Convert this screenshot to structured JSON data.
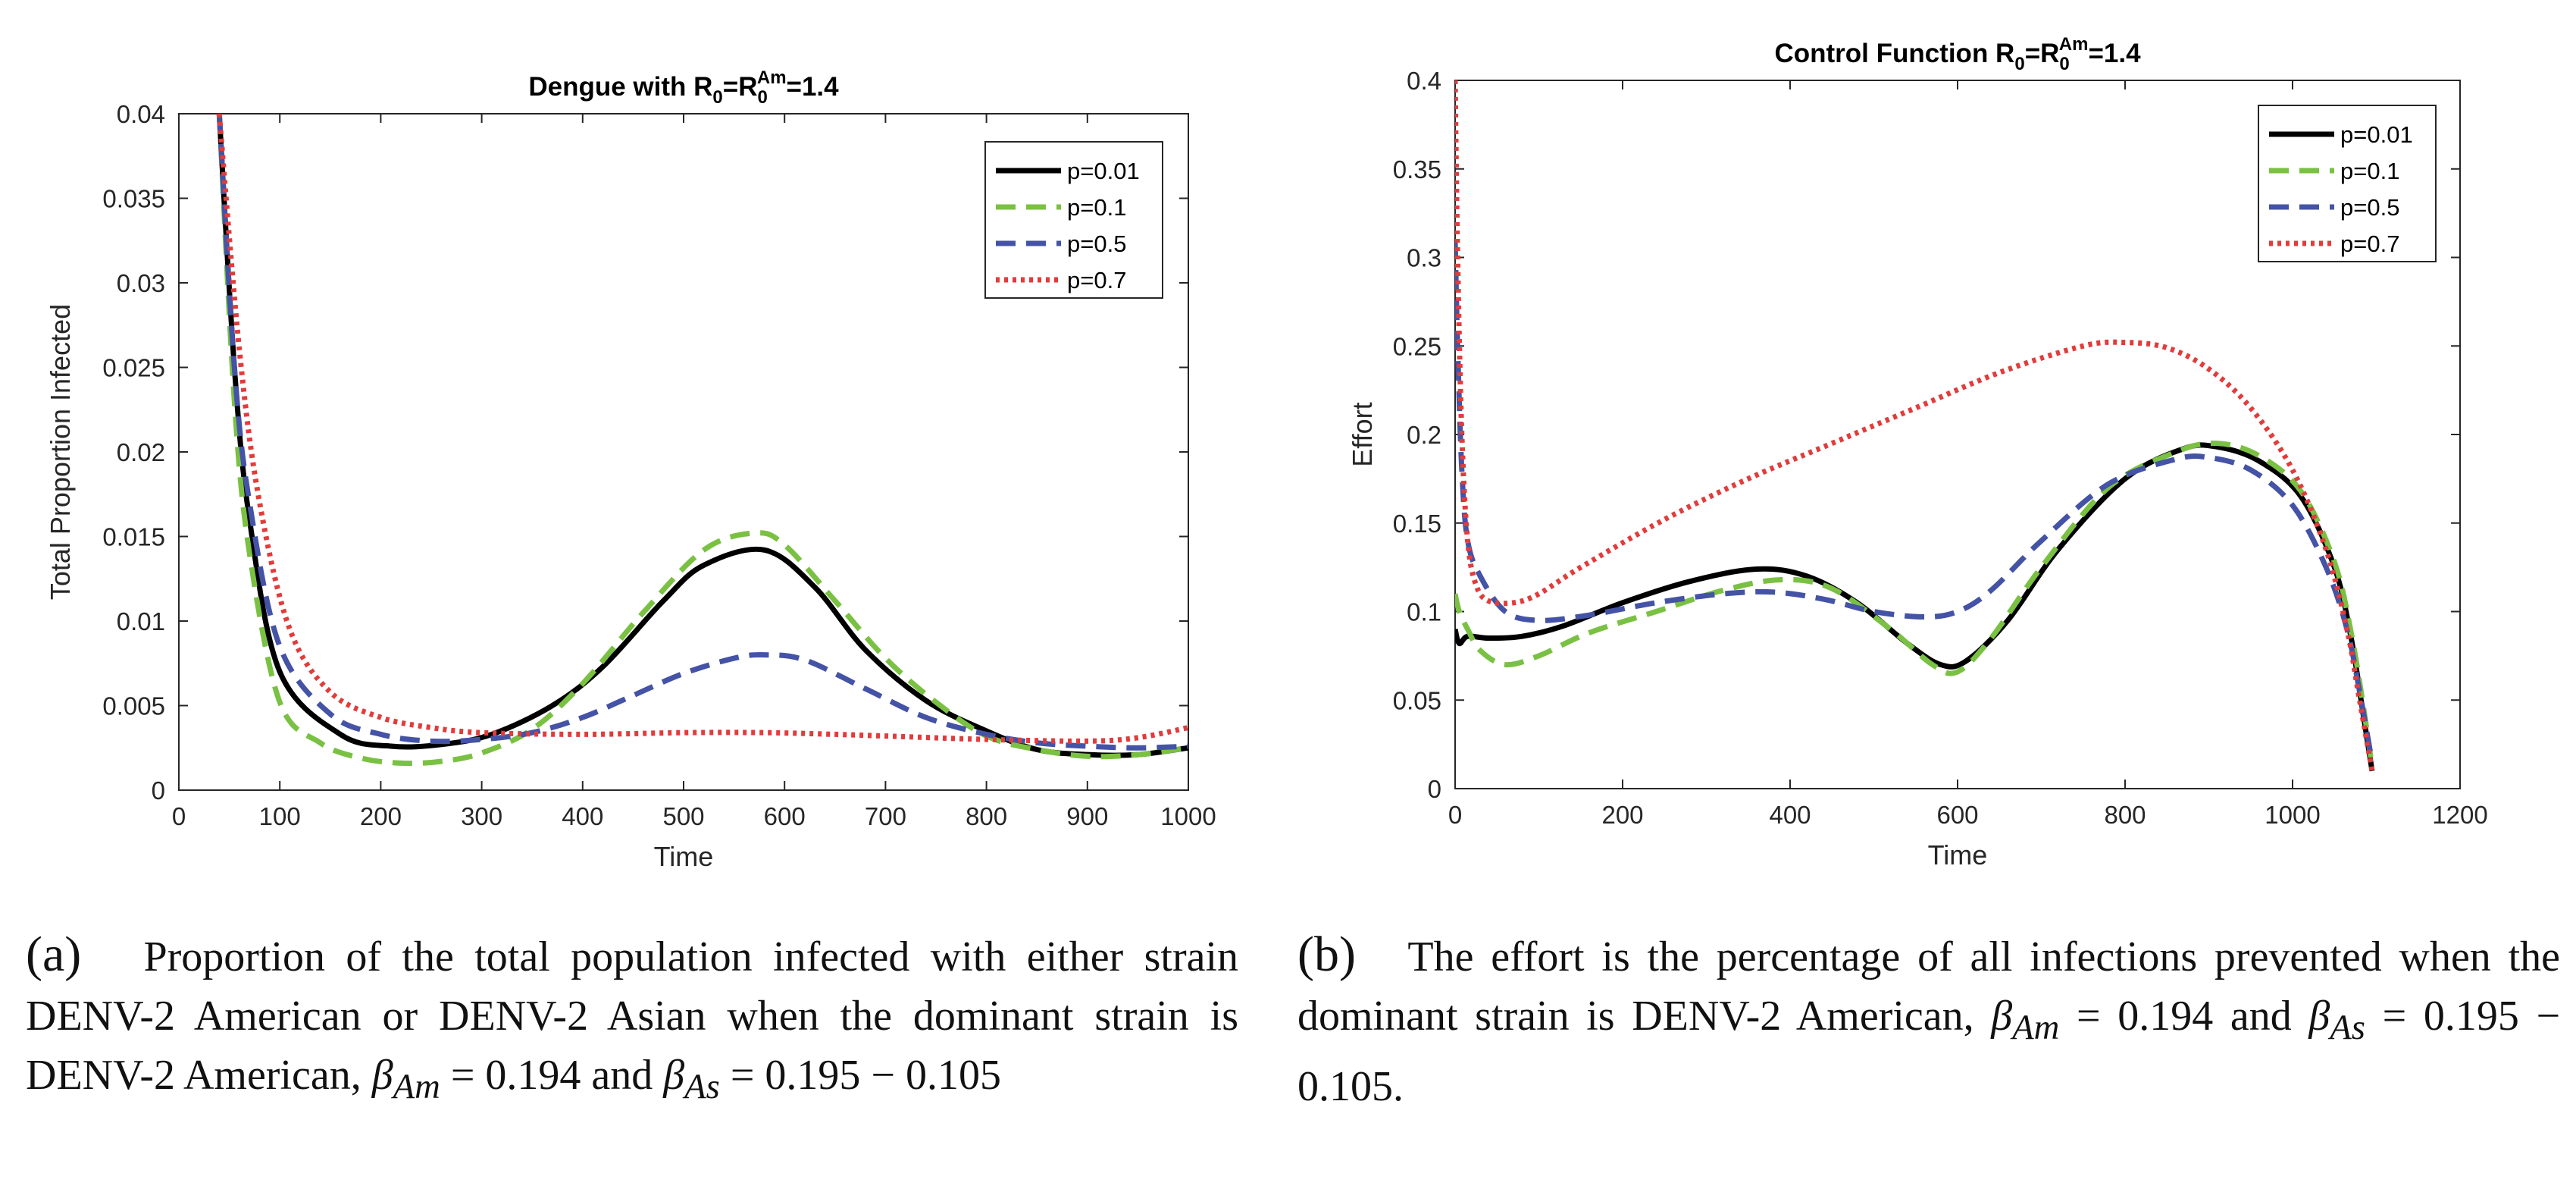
{
  "chart_data": [
    {
      "type": "line",
      "title": "Dengue with R0=R0Am=1.4",
      "title_parts": {
        "prefix": "Dengue with R",
        "sub1": "0",
        "mid": "=R",
        "sub2": "0",
        "sup": "Am",
        "suffix": "=1.4"
      },
      "xlabel": "Time",
      "ylabel": "Total Proportion Infected",
      "xlim": [
        0,
        1000
      ],
      "ylim": [
        0,
        0.04
      ],
      "xticks": [
        "0",
        "100",
        "200",
        "300",
        "400",
        "500",
        "600",
        "700",
        "800",
        "900",
        "1000"
      ],
      "yticks": [
        "0",
        "0.005",
        "0.01",
        "0.015",
        "0.02",
        "0.025",
        "0.03",
        "0.035",
        "0.04"
      ],
      "legend_position": "top-right",
      "series": [
        {
          "name": "p=0.01",
          "color": "#000000",
          "style": "solid",
          "x": [
            40,
            55,
            70,
            100,
            160,
            210,
            260,
            310,
            370,
            420,
            480,
            520,
            580,
            630,
            680,
            740,
            800,
            850,
            900,
            950,
            1000
          ],
          "y": [
            0.04,
            0.025,
            0.016,
            0.007,
            0.0033,
            0.0026,
            0.0027,
            0.0033,
            0.005,
            0.0073,
            0.0112,
            0.0133,
            0.0142,
            0.012,
            0.0083,
            0.0053,
            0.0035,
            0.0024,
            0.0021,
            0.0021,
            0.0025
          ]
        },
        {
          "name": "p=0.1",
          "color": "#7ac143",
          "style": "dashed",
          "x": [
            40,
            55,
            70,
            100,
            140,
            180,
            220,
            260,
            300,
            350,
            400,
            460,
            520,
            570,
            600,
            650,
            700,
            750,
            800,
            850,
            900,
            950,
            1000
          ],
          "y": [
            0.04,
            0.023,
            0.014,
            0.0052,
            0.0028,
            0.0019,
            0.0016,
            0.0017,
            0.0022,
            0.0036,
            0.0063,
            0.0105,
            0.0142,
            0.0152,
            0.0145,
            0.0112,
            0.0078,
            0.0052,
            0.0032,
            0.0024,
            0.002,
            0.0021,
            0.0025
          ]
        },
        {
          "name": "p=0.5",
          "color": "#4453a6",
          "style": "dashed",
          "x": [
            40,
            55,
            70,
            100,
            150,
            200,
            250,
            300,
            350,
            400,
            450,
            500,
            550,
            580,
            620,
            680,
            740,
            800,
            850,
            900,
            950,
            1000
          ],
          "y": [
            0.04,
            0.025,
            0.017,
            0.0085,
            0.0045,
            0.0033,
            0.0029,
            0.003,
            0.0034,
            0.0043,
            0.0056,
            0.0069,
            0.0078,
            0.008,
            0.0077,
            0.006,
            0.0043,
            0.0033,
            0.0028,
            0.0026,
            0.0025,
            0.0026
          ]
        },
        {
          "name": "p=0.7",
          "color": "#e23b3b",
          "style": "dotted",
          "x": [
            40,
            60,
            80,
            110,
            150,
            200,
            250,
            300,
            400,
            500,
            580,
            650,
            700,
            800,
            900,
            950,
            1000
          ],
          "y": [
            0.04,
            0.026,
            0.017,
            0.0095,
            0.0058,
            0.0043,
            0.0037,
            0.0034,
            0.0033,
            0.0034,
            0.0034,
            0.0033,
            0.0032,
            0.003,
            0.0029,
            0.0031,
            0.0037
          ]
        }
      ]
    },
    {
      "type": "line",
      "title": "Control Function R0=R0Am=1.4",
      "title_parts": {
        "prefix": "Control Function R",
        "sub1": "0",
        "mid": "=R",
        "sub2": "0",
        "sup": "Am",
        "suffix": "=1.4"
      },
      "xlabel": "Time",
      "ylabel": "Effort",
      "xlim": [
        0,
        1200
      ],
      "ylim": [
        0,
        0.4
      ],
      "xticks": [
        "0",
        "200",
        "400",
        "600",
        "800",
        "1000",
        "1200"
      ],
      "yticks": [
        "0",
        "0.05",
        "0.1",
        "0.15",
        "0.2",
        "0.25",
        "0.3",
        "0.35",
        "0.4"
      ],
      "legend_position": "top-right",
      "series": [
        {
          "name": "p=0.01",
          "color": "#000000",
          "style": "solid",
          "x": [
            0,
            5,
            15,
            40,
            80,
            130,
            200,
            280,
            360,
            420,
            480,
            540,
            580,
            610,
            660,
            720,
            800,
            870,
            910,
            960,
            1010,
            1050,
            1070,
            1085,
            1095
          ],
          "y": [
            0.09,
            0.082,
            0.086,
            0.085,
            0.086,
            0.092,
            0.105,
            0.117,
            0.124,
            0.12,
            0.105,
            0.082,
            0.07,
            0.072,
            0.095,
            0.135,
            0.175,
            0.192,
            0.193,
            0.185,
            0.165,
            0.125,
            0.085,
            0.04,
            0.01
          ]
        },
        {
          "name": "p=0.1",
          "color": "#7ac143",
          "style": "dashed",
          "x": [
            0,
            5,
            15,
            30,
            60,
            100,
            160,
            240,
            320,
            390,
            450,
            520,
            570,
            600,
            640,
            700,
            780,
            860,
            910,
            960,
            1010,
            1050,
            1070,
            1085,
            1095
          ],
          "y": [
            0.11,
            0.1,
            0.09,
            0.078,
            0.07,
            0.075,
            0.088,
            0.1,
            0.112,
            0.118,
            0.113,
            0.09,
            0.07,
            0.066,
            0.085,
            0.125,
            0.17,
            0.19,
            0.195,
            0.188,
            0.168,
            0.128,
            0.088,
            0.045,
            0.012
          ]
        },
        {
          "name": "p=0.5",
          "color": "#4453a6",
          "style": "dashed",
          "x": [
            0,
            3,
            8,
            15,
            30,
            60,
            100,
            160,
            240,
            320,
            380,
            440,
            500,
            560,
            600,
            640,
            700,
            780,
            860,
            900,
            950,
            1000,
            1040,
            1065,
            1080,
            1095
          ],
          "y": [
            0.31,
            0.25,
            0.18,
            0.14,
            0.12,
            0.1,
            0.095,
            0.098,
            0.105,
            0.11,
            0.111,
            0.107,
            0.1,
            0.097,
            0.1,
            0.112,
            0.14,
            0.172,
            0.186,
            0.187,
            0.18,
            0.16,
            0.125,
            0.09,
            0.055,
            0.015
          ]
        },
        {
          "name": "p=0.7",
          "color": "#e23b3b",
          "style": "dotted",
          "x": [
            0,
            3,
            8,
            15,
            25,
            40,
            70,
            100,
            150,
            250,
            350,
            450,
            550,
            650,
            750,
            800,
            850,
            900,
            950,
            1000,
            1040,
            1065,
            1080,
            1095
          ],
          "y": [
            0.4,
            0.3,
            0.2,
            0.14,
            0.115,
            0.106,
            0.105,
            0.11,
            0.125,
            0.152,
            0.175,
            0.195,
            0.215,
            0.235,
            0.25,
            0.252,
            0.249,
            0.237,
            0.215,
            0.18,
            0.135,
            0.09,
            0.05,
            0.01
          ]
        }
      ]
    }
  ],
  "captions": {
    "a": {
      "label": "(a)",
      "text": "Proportion of the total population infected with either strain DENV-2 American or DENV-2 Asian when the dominant strain is DENV-2 American,",
      "beta_am_sym": "β",
      "beta_am_sub": "Am",
      "beta_am_val": "= 0.194",
      "and": "and",
      "beta_as_sym": "β",
      "beta_as_sub": "As",
      "beta_as_val": "= 0.195 − 0.105"
    },
    "b": {
      "label": "(b)",
      "text": "The effort is the percentage of all infections prevented when the dominant strain is DENV-2 American,",
      "beta_am_sym": "β",
      "beta_am_sub": "Am",
      "beta_am_val": "= 0.194 and",
      "beta_as_sym": "β",
      "beta_as_sub": "As",
      "beta_as_val": "= 0.195 − 0.105."
    }
  }
}
